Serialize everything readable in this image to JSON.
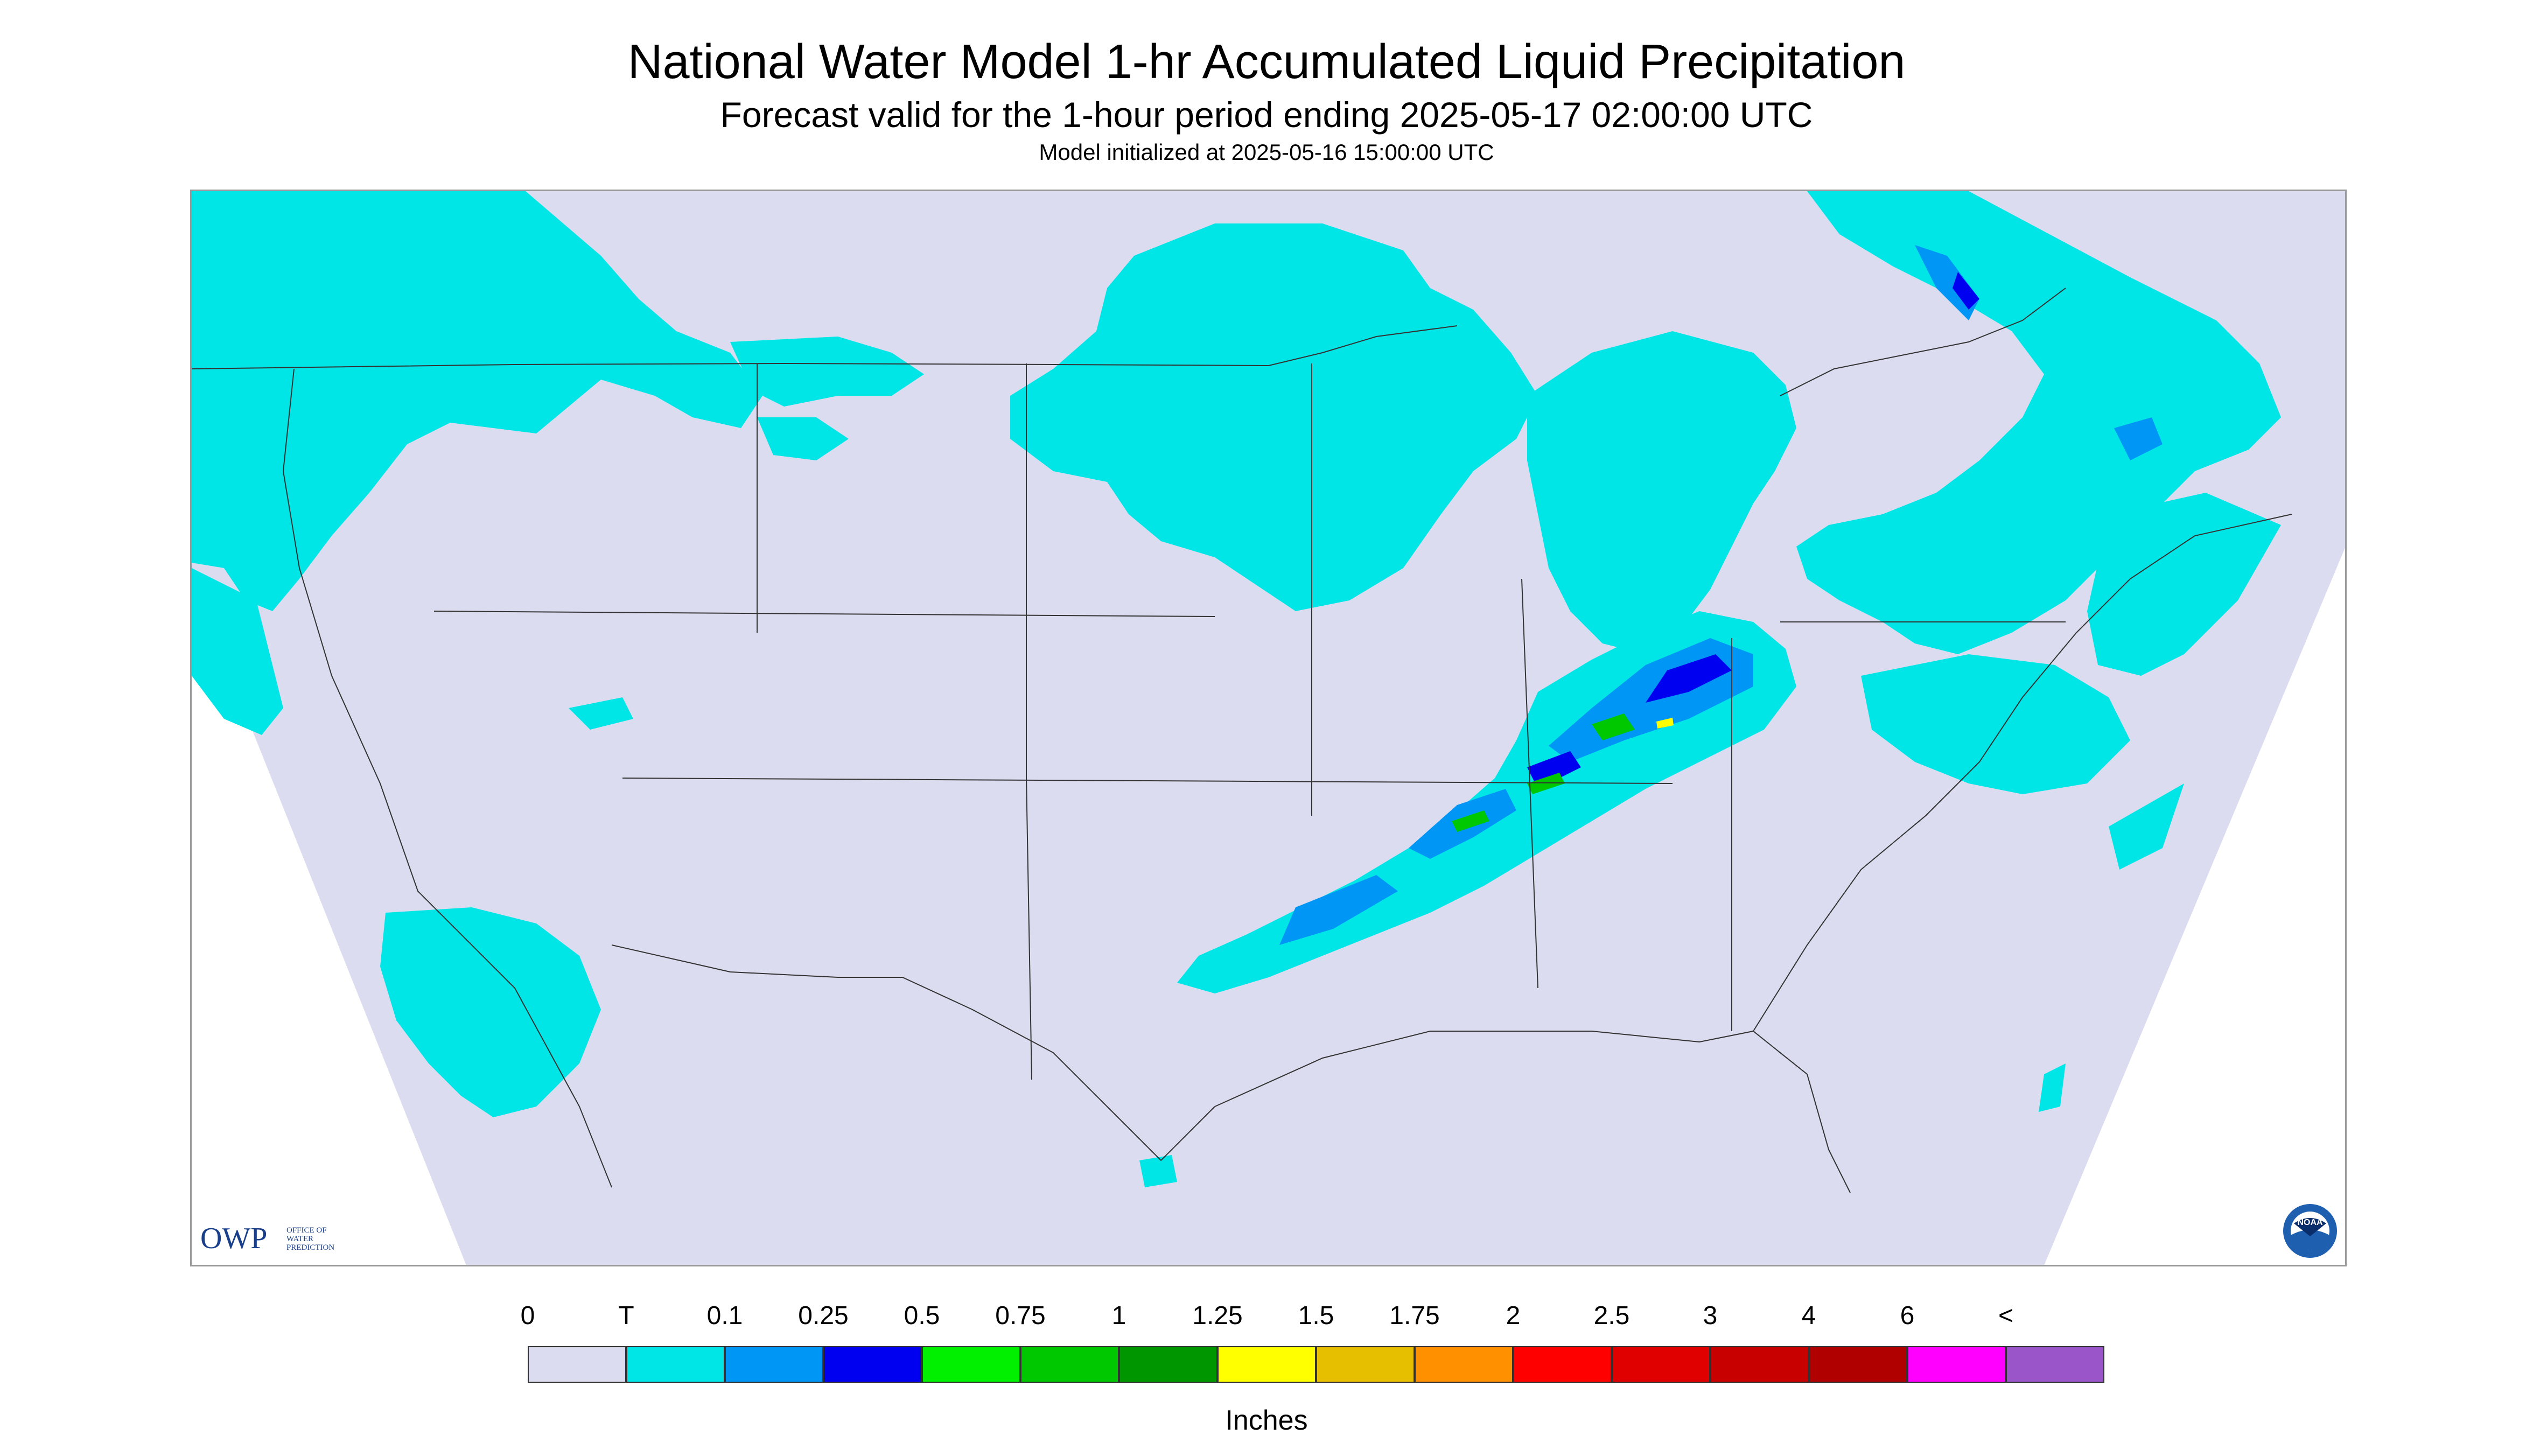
{
  "title": "National Water Model 1-hr Accumulated Liquid Precipitation",
  "subtitle": "Forecast valid for the 1-hour period ending 2025-05-17 02:00:00 UTC",
  "init_line": "Model initialized at 2025-05-16 15:00:00 UTC",
  "logos": {
    "owp_main": "OWP",
    "owp_sub": [
      "OFFICE OF",
      "WATER",
      "PREDICTION"
    ],
    "noaa": "NOAA"
  },
  "legend": {
    "labels": [
      "0",
      "T",
      "0.1",
      "0.25",
      "0.5",
      "0.75",
      "1",
      "1.25",
      "1.5",
      "1.75",
      "2",
      "2.5",
      "3",
      "4",
      "6",
      "<"
    ],
    "colors": [
      "#dcdcf0",
      "#00e6e6",
      "#0096f5",
      "#0000f0",
      "#00f000",
      "#00c800",
      "#009600",
      "#ffff00",
      "#e6c000",
      "#ff9000",
      "#ff0000",
      "#e00000",
      "#c80000",
      "#b00000",
      "#ff00ff",
      "#9a55c8"
    ],
    "units": "Inches"
  },
  "map_colors": {
    "no_data": "#ffffff",
    "domain": "#dcdcf0",
    "trace": "#00e6e6",
    "light": "#0096f5",
    "moderate": "#0000f0",
    "heavy": "#00c800",
    "very_heavy": "#ffff00",
    "borders": "#333333"
  }
}
